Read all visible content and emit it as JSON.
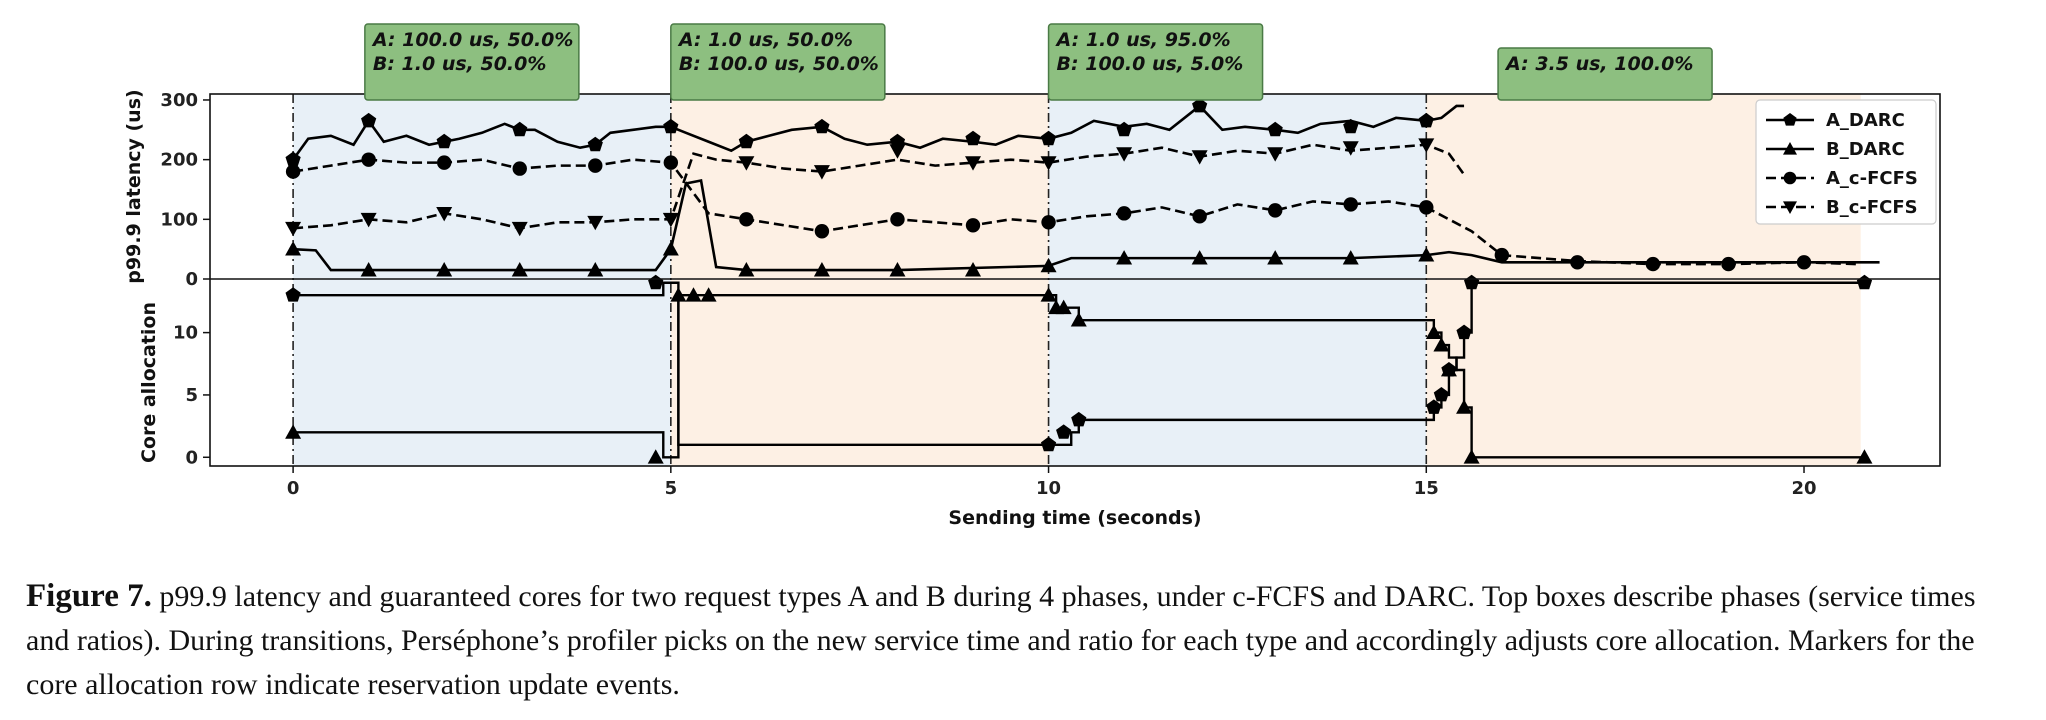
{
  "chart_data": {
    "type": "line",
    "xlabel": "Sending time (seconds)",
    "xlim": [
      -1.1,
      21.8
    ],
    "x_ticks": [
      "0",
      "5",
      "10",
      "15",
      "20"
    ],
    "phase_boundaries": [
      0,
      5,
      10,
      15
    ],
    "phase_shading": [
      "blue",
      "orange",
      "blue",
      "orange"
    ],
    "phase_boxes": [
      {
        "lines": [
          "A: 100.0 us, 50.0%",
          "B: 1.0 us, 50.0%"
        ]
      },
      {
        "lines": [
          "A: 1.0 us, 50.0%",
          "B: 100.0 us, 50.0%"
        ]
      },
      {
        "lines": [
          "A: 1.0 us, 95.0%",
          "B: 100.0 us, 5.0%"
        ]
      },
      {
        "lines": [
          "A: 3.5 us, 100.0%"
        ]
      }
    ],
    "panels": [
      {
        "name": "latency",
        "ylabel": "p99.9 latency (us)",
        "ylim": [
          0,
          310
        ],
        "y_ticks": [
          "0",
          "100",
          "200",
          "300"
        ],
        "legend": [
          "A_DARC",
          "B_DARC",
          "A_c-FCFS",
          "B_c-FCFS"
        ],
        "legend_position": "top-right",
        "series": [
          {
            "name": "A_DARC",
            "marker": "pentagon",
            "linestyle": "solid",
            "x": [
              0,
              0.2,
              0.5,
              0.8,
              1,
              1.2,
              1.5,
              1.8,
              2,
              2.2,
              2.5,
              2.8,
              3,
              3.2,
              3.5,
              3.8,
              4,
              4.2,
              4.5,
              4.8,
              5,
              5.2,
              5.5,
              5.8,
              6,
              6.3,
              6.6,
              7,
              7.3,
              7.6,
              8,
              8.3,
              8.6,
              9,
              9.3,
              9.6,
              10,
              10.3,
              10.6,
              11,
              11.3,
              11.6,
              12,
              12.3,
              12.6,
              13,
              13.3,
              13.6,
              14,
              14.3,
              14.6,
              15,
              15.2,
              15.4,
              15.5
            ],
            "y": [
              200,
              235,
              240,
              225,
              265,
              230,
              240,
              225,
              230,
              235,
              245,
              260,
              250,
              250,
              230,
              220,
              225,
              245,
              250,
              255,
              255,
              245,
              230,
              215,
              230,
              240,
              250,
              255,
              235,
              225,
              230,
              220,
              235,
              230,
              225,
              240,
              235,
              245,
              265,
              255,
              260,
              250,
              290,
              250,
              255,
              250,
              245,
              260,
              265,
              255,
              270,
              265,
              270,
              290,
              290
            ],
            "marker_x": [
              0,
              1,
              2,
              3,
              4,
              5,
              6,
              7,
              8,
              9,
              10,
              11,
              12,
              13,
              14,
              15
            ],
            "marker_y": [
              200,
              265,
              230,
              250,
              225,
              255,
              230,
              255,
              230,
              235,
              235,
              250,
              290,
              250,
              255,
              265
            ]
          },
          {
            "name": "B_DARC",
            "marker": "triangle-up",
            "linestyle": "solid",
            "x": [
              0,
              0.3,
              0.5,
              2,
              4,
              4.8,
              5,
              5.2,
              5.4,
              5.6,
              6,
              8,
              10,
              10.3,
              11,
              12,
              14,
              15,
              15.3,
              15.6,
              16,
              21
            ],
            "y": [
              50,
              48,
              15,
              15,
              15,
              15,
              50,
              160,
              165,
              20,
              15,
              15,
              22,
              35,
              35,
              35,
              35,
              40,
              45,
              40,
              28,
              28
            ],
            "marker_x": [
              0,
              1,
              2,
              3,
              4,
              5,
              6,
              7,
              8,
              9,
              10,
              11,
              12,
              13,
              14,
              15
            ],
            "marker_y": [
              50,
              15,
              15,
              15,
              15,
              50,
              15,
              15,
              15,
              15,
              22,
              35,
              35,
              35,
              35,
              40
            ]
          },
          {
            "name": "A_c-FCFS",
            "marker": "circle",
            "linestyle": "dashed",
            "x": [
              0,
              0.5,
              1,
              1.5,
              2,
              2.5,
              3,
              3.5,
              4,
              4.5,
              5,
              5.5,
              6,
              6.5,
              7,
              7.5,
              8,
              8.5,
              9,
              9.5,
              10,
              10.5,
              11,
              11.5,
              12,
              12.5,
              13,
              13.5,
              14,
              14.5,
              15,
              15.3,
              15.6,
              16,
              17,
              18,
              19,
              20,
              20.7
            ],
            "y": [
              180,
              190,
              200,
              195,
              195,
              200,
              185,
              190,
              190,
              200,
              195,
              110,
              100,
              90,
              80,
              90,
              100,
              95,
              90,
              100,
              95,
              105,
              110,
              120,
              105,
              125,
              115,
              130,
              125,
              130,
              120,
              100,
              80,
              40,
              30,
              25,
              25,
              28,
              25
            ],
            "marker_x": [
              0,
              1,
              2,
              3,
              4,
              5,
              6,
              7,
              8,
              9,
              10,
              11,
              12,
              13,
              14,
              15,
              16,
              17,
              18,
              19,
              20
            ],
            "marker_y": [
              180,
              200,
              195,
              185,
              190,
              195,
              100,
              80,
              100,
              90,
              95,
              110,
              105,
              115,
              125,
              120,
              40,
              28,
              25,
              25,
              28
            ]
          },
          {
            "name": "B_c-FCFS",
            "marker": "triangle-down",
            "linestyle": "dashed",
            "x": [
              0,
              0.5,
              1,
              1.5,
              2,
              2.5,
              3,
              3.5,
              4,
              4.5,
              5,
              5.3,
              5.6,
              6,
              6.5,
              7,
              7.5,
              8,
              8.5,
              9,
              9.5,
              10,
              10.5,
              11,
              11.5,
              12,
              12.5,
              13,
              13.5,
              14,
              14.5,
              15,
              15.3,
              15.5
            ],
            "y": [
              85,
              90,
              100,
              95,
              110,
              100,
              85,
              95,
              95,
              100,
              100,
              210,
              200,
              195,
              185,
              180,
              190,
              200,
              190,
              195,
              200,
              195,
              205,
              210,
              220,
              205,
              215,
              210,
              225,
              215,
              220,
              225,
              210,
              175
            ],
            "marker_x": [
              0,
              1,
              2,
              3,
              4,
              5,
              6,
              7,
              8,
              9,
              10,
              11,
              12,
              13,
              14,
              15
            ],
            "marker_y": [
              85,
              100,
              110,
              85,
              95,
              100,
              195,
              180,
              215,
              195,
              195,
              210,
              205,
              210,
              220,
              225
            ]
          }
        ]
      },
      {
        "name": "cores",
        "ylabel": "Core allocation",
        "ylim": [
          -0.7,
          14.3
        ],
        "y_ticks": [
          "0",
          "5",
          "10"
        ],
        "series": [
          {
            "name": "A_DARC",
            "marker": "pentagon",
            "step": true,
            "x": [
              0,
              4.8,
              4.9,
              5,
              5.1,
              10,
              10.1,
              10.3,
              10.4,
              15,
              15.1,
              15.2,
              15.3,
              15.4,
              15.5,
              15.6,
              20.8
            ],
            "y": [
              13,
              13,
              14,
              14,
              1,
              1,
              1,
              2,
              3,
              3,
              4,
              5,
              7,
              8,
              10,
              14,
              14
            ],
            "marker_x": [
              0,
              4.8,
              10,
              10.2,
              10.4,
              15.1,
              15.2,
              15.3,
              15.5,
              15.6,
              20.8
            ],
            "marker_y": [
              13,
              14,
              1,
              2,
              3,
              4,
              5,
              7,
              10,
              14,
              14
            ]
          },
          {
            "name": "B_DARC",
            "marker": "triangle-up",
            "step": true,
            "x": [
              0,
              4.8,
              4.9,
              5,
              5.1,
              10,
              10.1,
              10.3,
              10.4,
              15,
              15.1,
              15.2,
              15.3,
              15.4,
              15.5,
              15.6,
              20.8
            ],
            "y": [
              2,
              2,
              0,
              0,
              13,
              13,
              12,
              12,
              11,
              11,
              10,
              9,
              8,
              7,
              4,
              0,
              0
            ],
            "marker_x": [
              0,
              4.8,
              5.1,
              5.3,
              5.5,
              10,
              10.1,
              10.2,
              10.4,
              15.1,
              15.2,
              15.3,
              15.5,
              15.6,
              20.8
            ],
            "marker_y": [
              2,
              0,
              13,
              13,
              13,
              13,
              12,
              12,
              11,
              10,
              9,
              7,
              4,
              0,
              0
            ]
          }
        ]
      }
    ]
  },
  "caption": {
    "label": "Figure 7.",
    "text": "p99.9 latency and guaranteed cores for two request types A and B during 4 phases, under c-FCFS and DARC. Top boxes describe phases (service times and ratios). During transitions, Perséphone’s profiler picks on the new service time and ratio for each type and accordingly adjusts core allocation. Markers for the core allocation row indicate reservation update events."
  }
}
